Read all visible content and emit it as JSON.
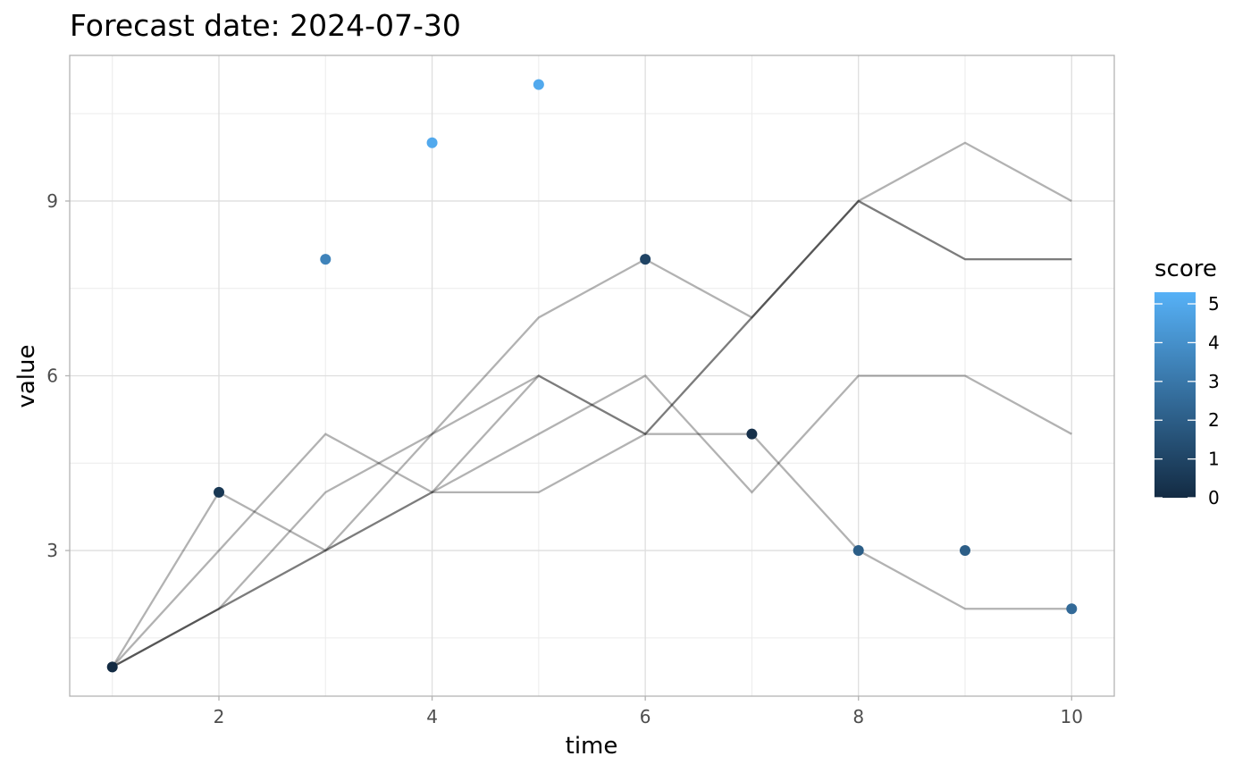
{
  "chart_data": {
    "type": "line",
    "title": "Forecast date: 2024-07-30",
    "xlabel": "time",
    "ylabel": "value",
    "xlim": [
      0.6,
      10.4
    ],
    "ylim": [
      0.5,
      11.5
    ],
    "x_ticks": [
      2,
      4,
      6,
      8,
      10
    ],
    "y_ticks": [
      3,
      6,
      9
    ],
    "grid": true,
    "series_style": {
      "color": "#000000",
      "opacity": 0.3
    },
    "series": [
      {
        "x": [
          1,
          2,
          3,
          4,
          5,
          6,
          7,
          8,
          9,
          10
        ],
        "values": [
          1,
          4,
          3,
          4,
          5,
          6,
          4,
          6,
          6,
          5
        ]
      },
      {
        "x": [
          1,
          2,
          3,
          4,
          5,
          6,
          7,
          8,
          9,
          10
        ],
        "values": [
          1,
          3,
          5,
          4,
          4,
          5,
          7,
          9,
          10,
          9
        ]
      },
      {
        "x": [
          1,
          2,
          3,
          4,
          5,
          6,
          7,
          8,
          9,
          10
        ],
        "values": [
          1,
          2,
          4,
          5,
          7,
          8,
          7,
          9,
          8,
          8
        ]
      },
      {
        "x": [
          1,
          2,
          3,
          4,
          5,
          6,
          7,
          8,
          9,
          10
        ],
        "values": [
          1,
          2,
          3,
          5,
          6,
          5,
          7,
          9,
          8,
          8
        ]
      },
      {
        "x": [
          1,
          2,
          3,
          4,
          5,
          6,
          7,
          8,
          9,
          10
        ],
        "values": [
          1,
          2,
          3,
          4,
          6,
          5,
          5,
          3,
          2,
          2
        ]
      }
    ],
    "points": [
      {
        "x": 1,
        "y": 1,
        "score": 0
      },
      {
        "x": 2,
        "y": 4,
        "score": 0.5
      },
      {
        "x": 3,
        "y": 8,
        "score": 3.5
      },
      {
        "x": 4,
        "y": 10,
        "score": 5
      },
      {
        "x": 5,
        "y": 11,
        "score": 5
      },
      {
        "x": 6,
        "y": 8,
        "score": 1
      },
      {
        "x": 7,
        "y": 5,
        "score": 0.2
      },
      {
        "x": 8,
        "y": 3,
        "score": 2
      },
      {
        "x": 9,
        "y": 3,
        "score": 2
      },
      {
        "x": 10,
        "y": 2,
        "score": 2.5
      }
    ],
    "legend": {
      "title": "score",
      "position": "right",
      "range": [
        0,
        5.3
      ],
      "ticks": [
        0,
        1,
        2,
        3,
        4,
        5
      ],
      "color_low": "#132B43",
      "color_high": "#56B1F7"
    }
  }
}
